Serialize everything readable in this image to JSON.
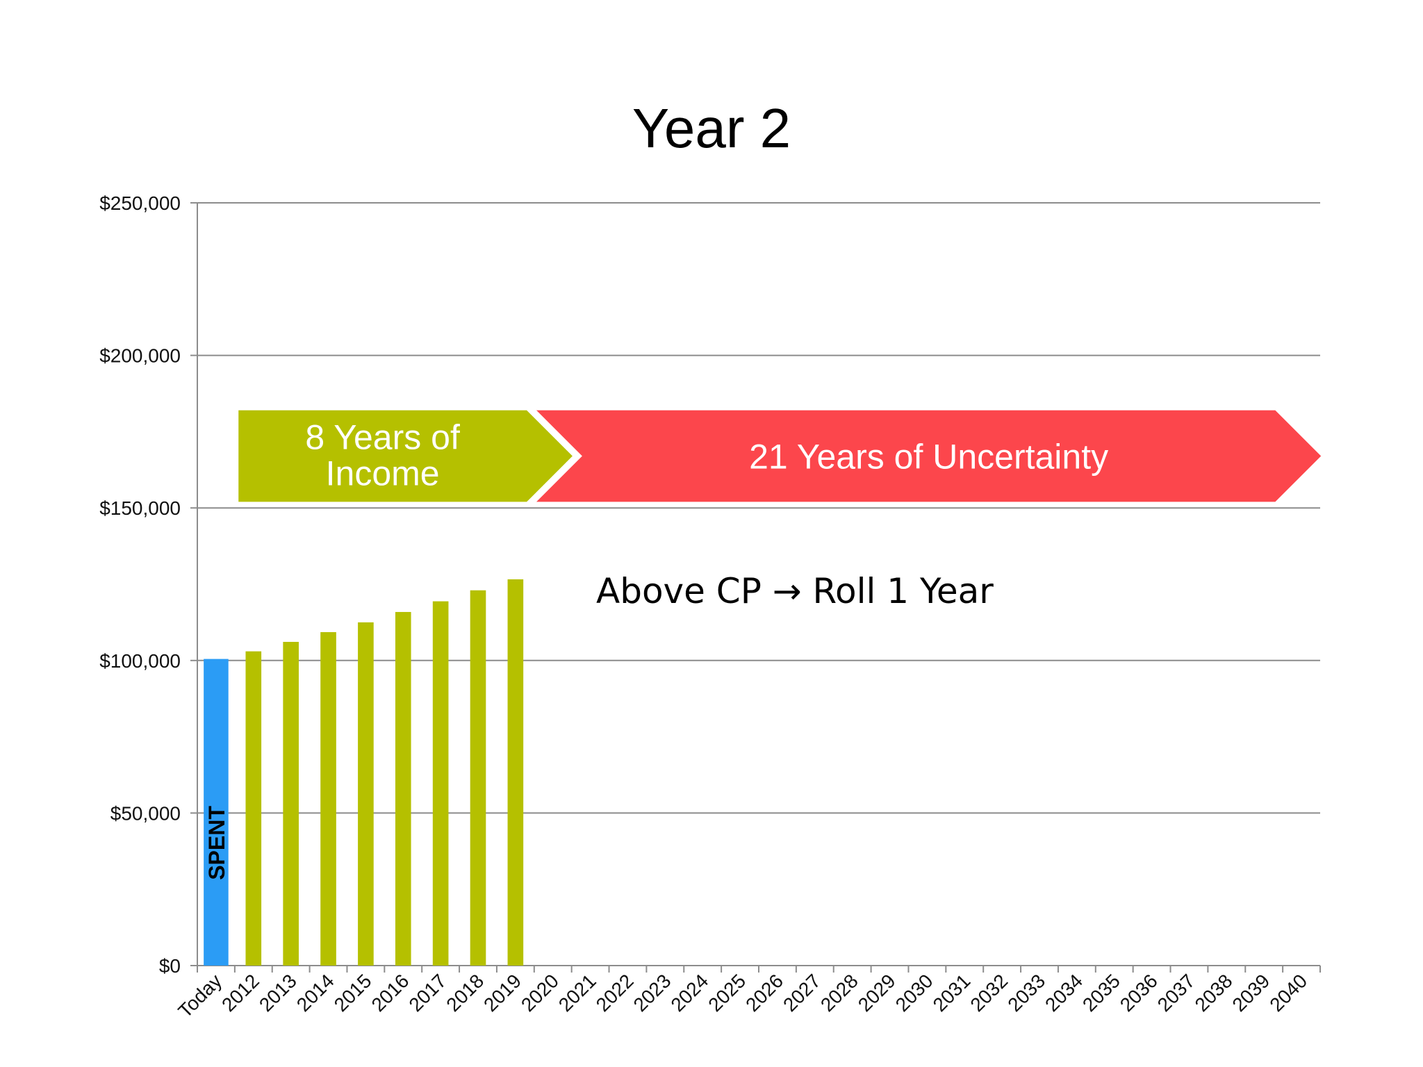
{
  "chart_data": {
    "type": "bar",
    "title": "Year 2",
    "xlabel": "",
    "ylabel": "",
    "ylim": [
      0,
      250000
    ],
    "yticks": [
      "$0",
      "$50,000",
      "$100,000",
      "$150,000",
      "$200,000",
      "$250,000"
    ],
    "ytick_values": [
      0,
      50000,
      100000,
      150000,
      200000,
      250000
    ],
    "grid": true,
    "categories": [
      "Today",
      "2012",
      "2013",
      "2014",
      "2015",
      "2016",
      "2017",
      "2018",
      "2019",
      "2020",
      "2021",
      "2022",
      "2023",
      "2024",
      "2025",
      "2026",
      "2027",
      "2028",
      "2029",
      "2030",
      "2031",
      "2032",
      "2033",
      "2034",
      "2035",
      "2036",
      "2037",
      "2038",
      "2039",
      "2040"
    ],
    "values": [
      100500,
      103000,
      106100,
      109300,
      112500,
      115900,
      119400,
      123000,
      126600,
      null,
      null,
      null,
      null,
      null,
      null,
      null,
      null,
      null,
      null,
      null,
      null,
      null,
      null,
      null,
      null,
      null,
      null,
      null,
      null,
      null
    ],
    "bar_colors": {
      "spent": "#2b9cf5",
      "income": "#b5c000"
    },
    "spent_label": "SPENT",
    "spent_index": 0,
    "arrows": [
      {
        "line1": "8 Years of",
        "line2": "Income",
        "color": "#b5c000",
        "from_category": "2012",
        "to_category": "2019"
      },
      {
        "text": "21 Years of Uncertainty",
        "color": "#fc464c",
        "from_category": "2020",
        "to_category": "2040"
      }
    ],
    "arrow_band": [
      152000,
      182000
    ],
    "annotation": "Above CP → Roll 1 Year"
  }
}
